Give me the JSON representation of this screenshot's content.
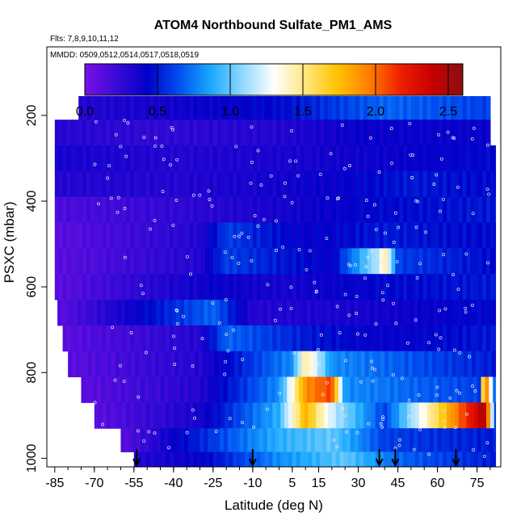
{
  "chart_data": {
    "type": "heatmap",
    "title": "ATOM4 Northbound Sulfate_PM1_AMS",
    "flights_note": "Flts: 7,8,9,10,11,12",
    "dates_note": "MMDD: 0509,0512,0514,0517,0518,0519",
    "xlabel": "Latitude (deg N)",
    "ylabel": "PSXC (mbar)",
    "xlim": [
      -88,
      84
    ],
    "ylim": [
      1020,
      40
    ],
    "x_ticks": [
      -85,
      -70,
      -55,
      -40,
      -25,
      -10,
      5,
      15,
      30,
      45,
      60,
      75
    ],
    "x_tick_labels": [
      "-85",
      "-70",
      "-55",
      "-40",
      "-25",
      "-10",
      "5",
      "15",
      "30",
      "45",
      "60",
      "75"
    ],
    "y_ticks": [
      200,
      400,
      600,
      800,
      1000
    ],
    "y_tick_labels": [
      "200",
      "400",
      "600",
      "800",
      "1000"
    ],
    "colorbar": {
      "range": [
        0,
        2.6
      ],
      "ticks": [
        0,
        0.5,
        1.0,
        1.5,
        2.0,
        2.5
      ],
      "tick_labels": [
        "0.0",
        "0.5",
        "1.0",
        "1.5",
        "2.0",
        "2.5"
      ],
      "colors": [
        "#7a10e6",
        "#3a0ad6",
        "#0000c8",
        "#0050f0",
        "#1aa8ff",
        "#8fd8ff",
        "#ffffff",
        "#ffe680",
        "#ffc400",
        "#ff8000",
        "#f02000",
        "#c80000",
        "#8a1010"
      ]
    },
    "pressure_levels": [
      180,
      240,
      300,
      360,
      420,
      480,
      540,
      600,
      660,
      720,
      780,
      840,
      900,
      960,
      1010
    ],
    "sulfate_rows": [
      {
        "p": 180,
        "lat_range": [
          -76,
          80
        ],
        "values": [
          [
            -76,
            0.3
          ],
          [
            0,
            0.45
          ],
          [
            40,
            0.7
          ],
          [
            80,
            0.6
          ]
        ]
      },
      {
        "p": 240,
        "lat_range": [
          -85,
          80
        ],
        "values": [
          [
            -85,
            0.3
          ],
          [
            -50,
            0.25
          ],
          [
            0,
            0.3
          ],
          [
            30,
            0.4
          ],
          [
            80,
            0.4
          ]
        ]
      },
      {
        "p": 300,
        "lat_range": [
          -85,
          82
        ],
        "values": [
          [
            -85,
            0.35
          ],
          [
            -40,
            0.3
          ],
          [
            10,
            0.35
          ],
          [
            50,
            0.4
          ],
          [
            82,
            0.45
          ]
        ]
      },
      {
        "p": 360,
        "lat_range": [
          -85,
          82
        ],
        "values": [
          [
            -85,
            0.3
          ],
          [
            -40,
            0.3
          ],
          [
            20,
            0.4
          ],
          [
            50,
            0.5
          ],
          [
            82,
            0.45
          ]
        ]
      },
      {
        "p": 420,
        "lat_range": [
          -85,
          82
        ],
        "values": [
          [
            -85,
            0.15
          ],
          [
            -40,
            0.25
          ],
          [
            0,
            0.35
          ],
          [
            40,
            0.45
          ],
          [
            82,
            0.5
          ]
        ]
      },
      {
        "p": 480,
        "lat_range": [
          -85,
          82
        ],
        "values": [
          [
            -85,
            0.1
          ],
          [
            -30,
            0.3
          ],
          [
            -20,
            0.6
          ],
          [
            10,
            0.4
          ],
          [
            40,
            0.5
          ],
          [
            82,
            0.45
          ]
        ]
      },
      {
        "p": 540,
        "lat_range": [
          -85,
          82
        ],
        "values": [
          [
            -85,
            0.1
          ],
          [
            -30,
            0.3
          ],
          [
            -20,
            0.6
          ],
          [
            20,
            0.4
          ],
          [
            38,
            1.2
          ],
          [
            40,
            1.5
          ],
          [
            45,
            0.6
          ],
          [
            82,
            0.45
          ]
        ]
      },
      {
        "p": 600,
        "lat_range": [
          -85,
          82
        ],
        "values": [
          [
            -85,
            0.1
          ],
          [
            -25,
            0.4
          ],
          [
            0,
            0.35
          ],
          [
            40,
            0.45
          ],
          [
            82,
            0.5
          ]
        ]
      },
      {
        "p": 660,
        "lat_range": [
          -84,
          82
        ],
        "values": [
          [
            -84,
            0.1
          ],
          [
            -25,
            0.7
          ],
          [
            -10,
            0.3
          ],
          [
            30,
            0.35
          ],
          [
            82,
            0.45
          ]
        ]
      },
      {
        "p": 720,
        "lat_range": [
          -82,
          82
        ],
        "values": [
          [
            -82,
            0.1
          ],
          [
            -30,
            0.3
          ],
          [
            -20,
            0.7
          ],
          [
            10,
            0.5
          ],
          [
            40,
            0.4
          ],
          [
            82,
            0.5
          ]
        ]
      },
      {
        "p": 780,
        "lat_range": [
          -80,
          82
        ],
        "values": [
          [
            -80,
            0.1
          ],
          [
            -30,
            0.3
          ],
          [
            5,
            0.8
          ],
          [
            10,
            1.5
          ],
          [
            20,
            0.8
          ],
          [
            82,
            0.5
          ]
        ]
      },
      {
        "p": 840,
        "lat_range": [
          -75,
          82
        ],
        "values": [
          [
            -75,
            0.1
          ],
          [
            -30,
            0.3
          ],
          [
            0,
            0.8
          ],
          [
            10,
            1.9
          ],
          [
            20,
            2.1
          ],
          [
            25,
            0.8
          ],
          [
            76,
            0.6
          ],
          [
            78,
            2.2
          ],
          [
            82,
            0.6
          ]
        ]
      },
      {
        "p": 900,
        "lat_range": [
          -70,
          82
        ],
        "values": [
          [
            -70,
            0.1
          ],
          [
            -30,
            0.35
          ],
          [
            0,
            0.9
          ],
          [
            10,
            1.8
          ],
          [
            20,
            1.2
          ],
          [
            40,
            0.6
          ],
          [
            78,
            2.5
          ],
          [
            82,
            0.6
          ]
        ]
      },
      {
        "p": 960,
        "lat_range": [
          -60,
          82
        ],
        "values": [
          [
            -60,
            0.1
          ],
          [
            -40,
            0.4
          ],
          [
            0,
            0.9
          ],
          [
            20,
            1.0
          ],
          [
            40,
            0.6
          ],
          [
            82,
            0.5
          ]
        ]
      },
      {
        "p": 1010,
        "lat_range": [
          -55,
          82
        ],
        "values": [
          [
            -55,
            0.3
          ],
          [
            -30,
            0.4
          ],
          [
            0,
            0.8
          ],
          [
            25,
            1.0
          ],
          [
            45,
            0.7
          ],
          [
            82,
            0.5
          ]
        ]
      }
    ],
    "descent_markers_lat": [
      -54,
      -10,
      38,
      44,
      67
    ]
  }
}
